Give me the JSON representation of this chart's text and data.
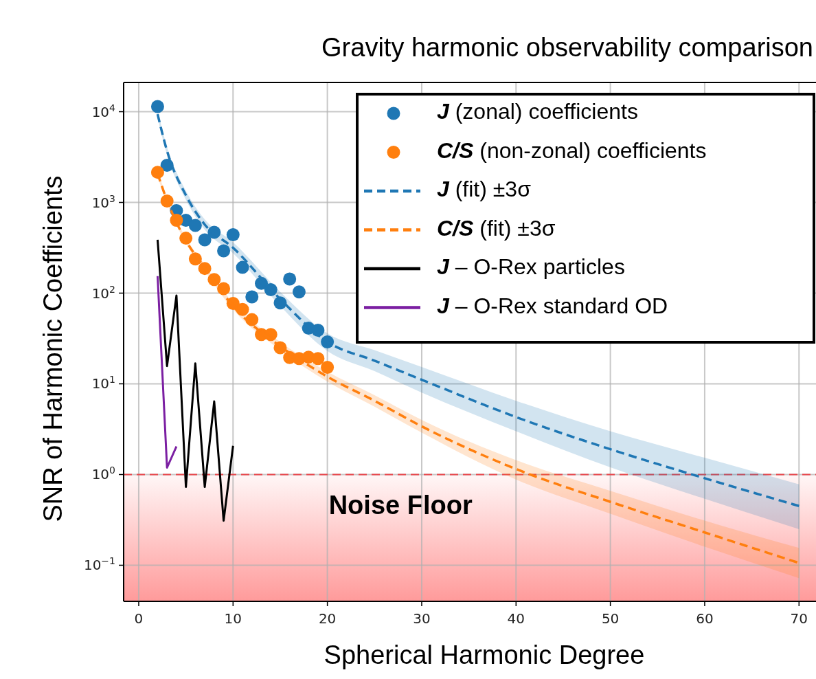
{
  "chart_data": {
    "type": "scatter",
    "title": "Gravity harmonic observability comparison",
    "xlabel": "Spherical Harmonic Degree",
    "ylabel": "SNR of Harmonic Coefficients",
    "log": "y",
    "grid": true,
    "legend": "top right",
    "xlim": [
      -1.6,
      71.8
    ],
    "ylim": [
      0.04,
      21000
    ],
    "xticks": [
      0,
      10,
      20,
      30,
      40,
      50,
      60,
      70
    ],
    "yticks": [
      {
        "value": 0.1,
        "label": "10$^{−1}$"
      },
      {
        "value": 1,
        "label": "10$^{0}$"
      },
      {
        "value": 10,
        "label": "10$^{1}$"
      },
      {
        "value": 100,
        "label": "10$^{2}$"
      },
      {
        "value": 1000,
        "label": "10$^{3}$"
      },
      {
        "value": 10000,
        "label": "10$^{4}$"
      }
    ],
    "ref_lines": [
      {
        "axis": "y",
        "value": 1,
        "color": "#e8474c",
        "line_style": "dashed"
      }
    ],
    "bands": [
      {
        "axis": "y",
        "from": 0.04,
        "to": 1,
        "label": "Noise Floor",
        "color": "#ff9a9a"
      }
    ],
    "series": [
      {
        "name": "J (zonal) coefficients",
        "marker": "circle",
        "color": "#1f77b4",
        "x": [
          2,
          3,
          4,
          5,
          6,
          7,
          8,
          9,
          10,
          11,
          12,
          13,
          14,
          15,
          16,
          17,
          18,
          19,
          20
        ],
        "values": [
          11400,
          2570,
          811,
          635,
          558,
          387,
          468,
          292,
          440,
          192,
          91,
          128,
          109,
          78,
          143,
          103,
          41,
          39,
          29
        ]
      },
      {
        "name": "C/S (non-zonal) coefficients",
        "marker": "circle",
        "color": "#ff7f0e",
        "x": [
          2,
          3,
          4,
          5,
          6,
          7,
          8,
          9,
          10,
          11,
          12,
          13,
          14,
          15,
          16,
          17,
          18,
          19,
          20
        ],
        "values": [
          2150,
          1035,
          635,
          403,
          238,
          187,
          141,
          112,
          77,
          66,
          51,
          35,
          35,
          25,
          19.5,
          19,
          19.7,
          19,
          15.2
        ]
      },
      {
        "name": "J (fit) ±3σ",
        "type": "line",
        "line_style": "dashed",
        "marker": "none",
        "color": "#1f77b4",
        "x": [
          2,
          3,
          5,
          7,
          10,
          15,
          20,
          25,
          30,
          40,
          50,
          60,
          70
        ],
        "values": [
          9400,
          3700,
          1200,
          570,
          316,
          86,
          29,
          18,
          11.1,
          4.3,
          1.9,
          0.91,
          0.45
        ],
        "upper": [
          10300,
          4100,
          1340,
          650,
          363,
          103,
          36,
          23.5,
          15.3,
          6.5,
          3.0,
          1.53,
          0.78
        ],
        "lower": [
          8500,
          3350,
          1070,
          500,
          275,
          72,
          23,
          13.8,
          8.0,
          3.0,
          1.2,
          0.54,
          0.25
        ]
      },
      {
        "name": "C/S (fit) ±3σ",
        "type": "line",
        "line_style": "dashed",
        "marker": "none",
        "color": "#ff7f0e",
        "x": [
          2,
          3,
          5,
          7,
          10,
          15,
          20,
          25,
          30,
          40,
          50,
          60,
          70
        ],
        "values": [
          2080,
          1050,
          380,
          190,
          72,
          26,
          12,
          6.5,
          3.4,
          1.15,
          0.5,
          0.23,
          0.106
        ],
        "upper": [
          2250,
          1120,
          405,
          205,
          78,
          29,
          13.6,
          7.5,
          4.0,
          1.44,
          0.66,
          0.31,
          0.155
        ],
        "lower": [
          1920,
          980,
          355,
          175,
          66,
          23.5,
          10.6,
          5.6,
          2.9,
          0.88,
          0.37,
          0.16,
          0.072
        ]
      },
      {
        "name": "J – O-Rex particles",
        "type": "line",
        "line_style": "solid",
        "marker": "none",
        "color": "#000000",
        "x": [
          2,
          3,
          4,
          5,
          6,
          7,
          8,
          9,
          10
        ],
        "values": [
          387,
          15.7,
          94,
          0.73,
          16.8,
          0.73,
          6.4,
          0.31,
          2.07
        ]
      },
      {
        "name": "J – O-Rex standard OD",
        "type": "line",
        "line_style": "solid",
        "marker": "none",
        "color": "#7b1fa2",
        "x": [
          2,
          3,
          4
        ],
        "values": [
          154,
          1.19,
          2.04
        ]
      }
    ]
  }
}
